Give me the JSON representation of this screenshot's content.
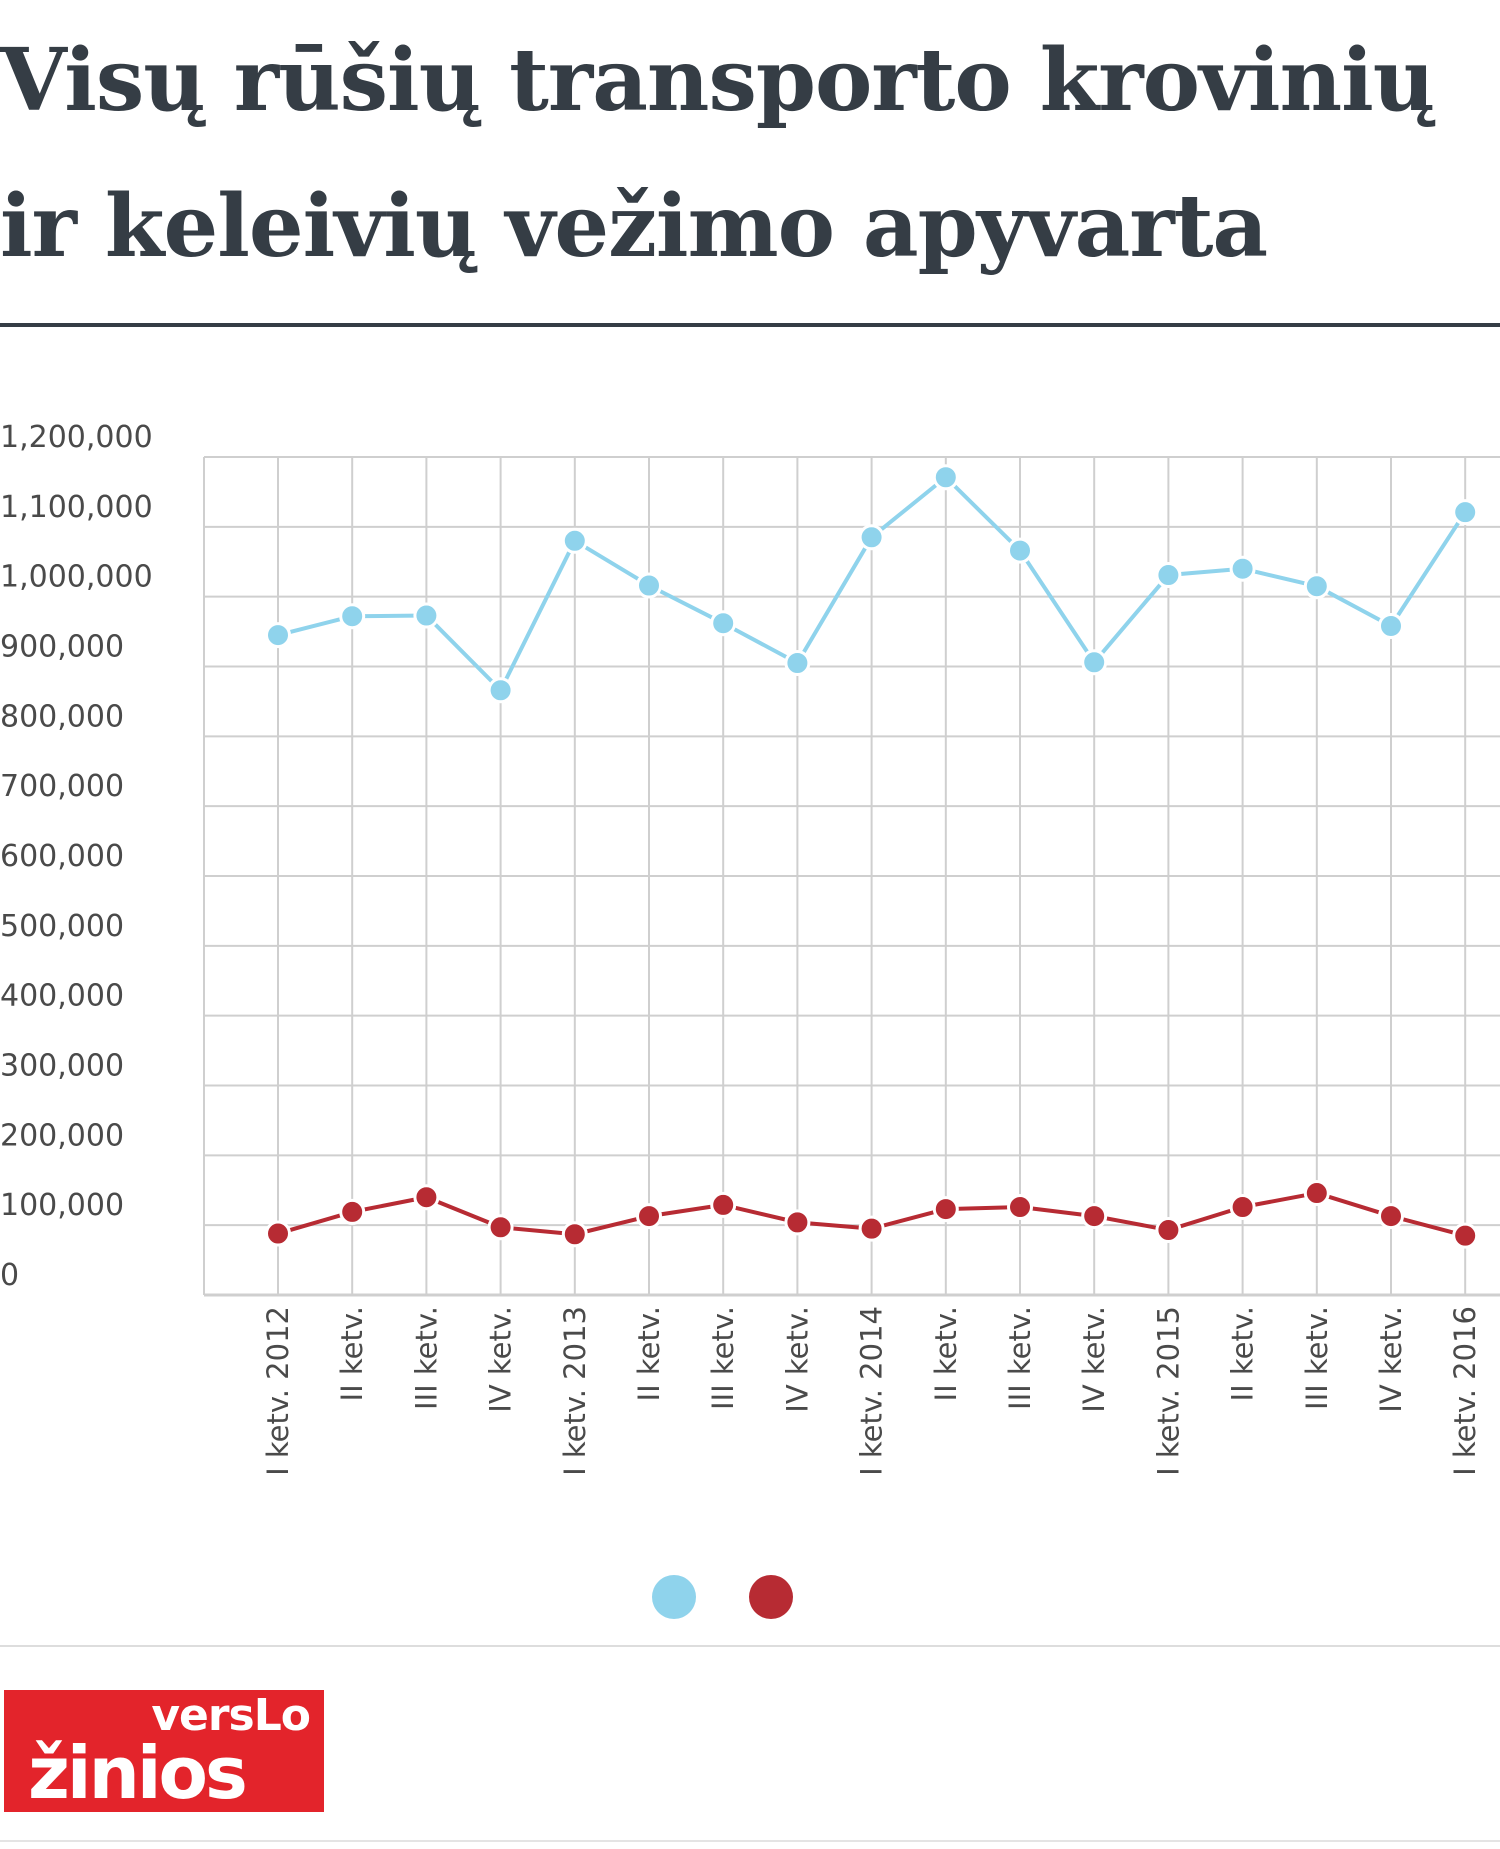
{
  "title": "Visų rūšių transporto krovinių ir keleivių vežimo apyvarta",
  "logo": {
    "line1": "versLo",
    "line2": "žinios"
  },
  "colors": {
    "series_light": "#8fd3ec",
    "series_dark": "#b72b33",
    "grid": "#cfcfcf",
    "title": "#353d45",
    "logo_bg": "#e3242b"
  },
  "chart_data": {
    "type": "line",
    "ylim": [
      0,
      1200000
    ],
    "yticks": [
      0,
      100000,
      200000,
      300000,
      400000,
      500000,
      600000,
      700000,
      800000,
      900000,
      1000000,
      1100000,
      1200000
    ],
    "ytick_labels": [
      "0",
      "100,000",
      "200,000",
      "300,000",
      "400,000",
      "500,000",
      "600,000",
      "700,000",
      "800,000",
      "900,000",
      "1,000,000",
      "1,100,000",
      "1,200,000"
    ],
    "categories": [
      "I ketv. 2012",
      "II ketv.",
      "III ketv.",
      "IV ketv.",
      "I ketv. 2013",
      "II ketv.",
      "III ketv.",
      "IV ketv.",
      "I ketv. 2014",
      "II ketv.",
      "III ketv.",
      "IV ketv.",
      "I ketv. 2015",
      "II ketv.",
      "III ketv.",
      "IV ketv.",
      "I ketv. 2016"
    ],
    "series": [
      {
        "color": "#8fd3ec",
        "values": [
          945000,
          972000,
          973000,
          866000,
          1080000,
          1016000,
          962000,
          905000,
          1085000,
          1171000,
          1066000,
          906000,
          1031000,
          1040000,
          1015000,
          958000,
          1121000
        ]
      },
      {
        "color": "#b72b33",
        "values": [
          88000,
          119000,
          140000,
          97000,
          87000,
          113000,
          129000,
          104000,
          95000,
          123000,
          126000,
          113000,
          93000,
          126000,
          146000,
          113000,
          85000
        ]
      }
    ],
    "grid": true,
    "legend_position": "bottom-center"
  }
}
